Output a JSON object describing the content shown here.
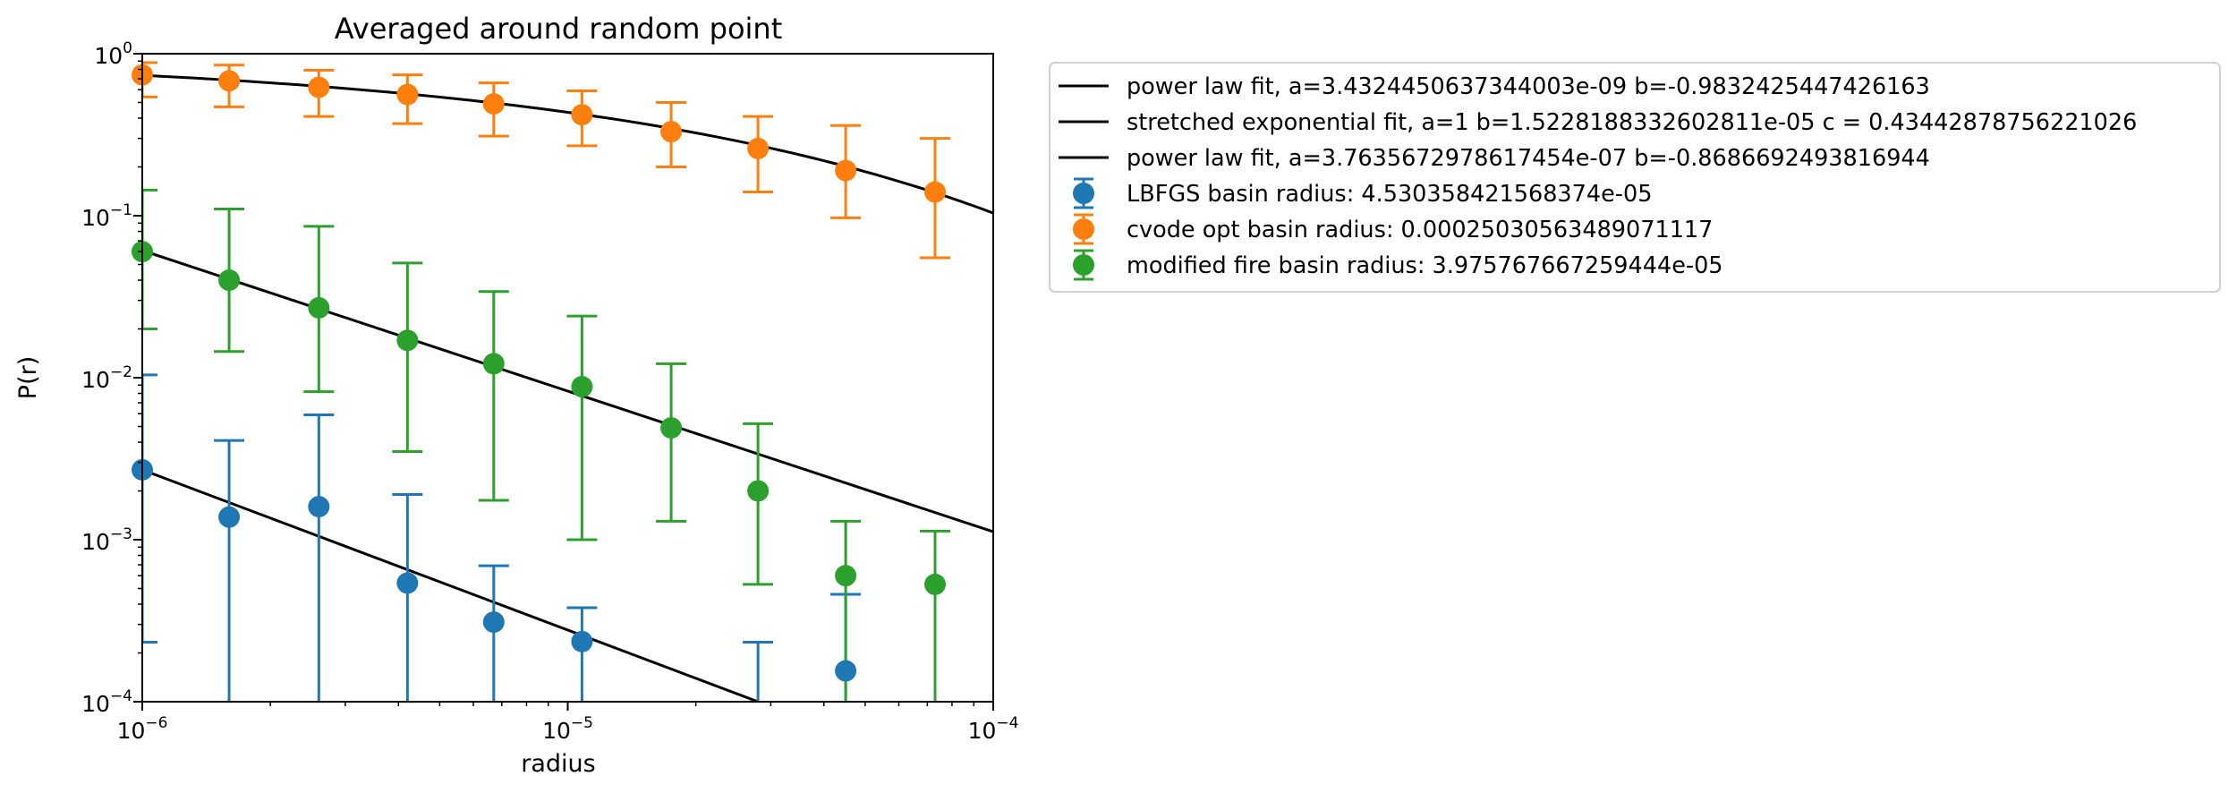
{
  "chart_data": {
    "type": "scatter",
    "title": "Averaged around random point",
    "xlabel": "radius",
    "ylabel": "P(r)",
    "xscale": "log",
    "yscale": "log",
    "xlim": [
      1e-06,
      0.0001
    ],
    "ylim": [
      0.0001,
      1
    ],
    "grid": false,
    "legend_position": "outside-right-top",
    "x_ticks": [
      {
        "base": "10",
        "exp": "−6",
        "value": 1e-06
      },
      {
        "base": "10",
        "exp": "−5",
        "value": 1e-05
      },
      {
        "base": "10",
        "exp": "−4",
        "value": 0.0001
      }
    ],
    "y_ticks": [
      {
        "base": "10",
        "exp": "−4",
        "value": 0.0001
      },
      {
        "base": "10",
        "exp": "−3",
        "value": 0.001
      },
      {
        "base": "10",
        "exp": "−2",
        "value": 0.01
      },
      {
        "base": "10",
        "exp": "−1",
        "value": 0.1
      },
      {
        "base": "10",
        "exp": "0",
        "value": 1
      }
    ],
    "fit_lines": [
      {
        "name": "power law fit, a=3.4324450637344003e-09 b=-0.9832425447426163",
        "color": "#000000",
        "x": [
          1e-06,
          2.8e-05
        ],
        "y": [
          0.0027,
          0.0001
        ]
      },
      {
        "name": "stretched exponential fit, a=1 b=1.5228188332602811e-05 c = 0.43442878756221026",
        "color": "#000000",
        "kind": "stretched-exp",
        "a": 1,
        "b": 1.5228188332602811e-05,
        "c": 0.43442878756221026,
        "x_range": [
          1e-06,
          0.0001
        ]
      },
      {
        "name": "power law fit, a=3.7635672978617454e-07 b=-0.8686692493816944",
        "color": "#000000",
        "x": [
          1e-06,
          0.0001
        ],
        "y": [
          0.061,
          0.00112
        ]
      }
    ],
    "series": [
      {
        "name": "LBFGS basin radius: 4.530358421568374e-05",
        "color": "#1f77b4",
        "x": [
          1e-06,
          1.6e-06,
          2.6e-06,
          4.2e-06,
          6.7e-06,
          1.08e-05,
          1.75e-05,
          2.8e-05,
          4.5e-05,
          7.3e-05
        ],
        "y": [
          0.0027,
          0.00138,
          0.0016,
          0.00054,
          0.00031,
          0.000235,
          null,
          null,
          0.000155,
          null
        ],
        "y_upper": [
          0.0104,
          0.0041,
          0.0059,
          0.0019,
          0.00069,
          0.00038,
          null,
          0.000233,
          0.00046,
          null
        ],
        "y_lower": [
          0.000233,
          0.0001,
          0.0001,
          0.0001,
          0.0001,
          0.0001,
          null,
          0.0001,
          0.0001,
          null
        ]
      },
      {
        "name": "cvode opt basin radius: 0.00025030563489071117",
        "color": "#ff7f0e",
        "x": [
          1e-06,
          1.6e-06,
          2.6e-06,
          4.2e-06,
          6.7e-06,
          1.08e-05,
          1.75e-05,
          2.8e-05,
          4.5e-05,
          7.3e-05
        ],
        "y": [
          0.74,
          0.68,
          0.62,
          0.56,
          0.49,
          0.42,
          0.33,
          0.26,
          0.19,
          0.14
        ],
        "y_upper": [
          0.88,
          0.85,
          0.79,
          0.74,
          0.66,
          0.59,
          0.5,
          0.41,
          0.36,
          0.3
        ],
        "y_lower": [
          0.54,
          0.47,
          0.41,
          0.37,
          0.31,
          0.27,
          0.2,
          0.14,
          0.097,
          0.055
        ]
      },
      {
        "name": "modified fire basin radius: 3.975767667259444e-05",
        "color": "#2ca02c",
        "x": [
          1e-06,
          1.6e-06,
          2.6e-06,
          4.2e-06,
          6.7e-06,
          1.08e-05,
          1.75e-05,
          2.8e-05,
          4.5e-05,
          7.3e-05
        ],
        "y": [
          0.06,
          0.04,
          0.027,
          0.017,
          0.0122,
          0.0088,
          0.0049,
          0.002,
          0.0006,
          0.00053
        ],
        "y_upper": [
          0.144,
          0.11,
          0.086,
          0.051,
          0.034,
          0.024,
          0.0122,
          0.0052,
          0.0013,
          0.00113
        ],
        "y_lower": [
          0.02,
          0.0145,
          0.0082,
          0.0035,
          0.00175,
          0.001,
          0.0013,
          0.00053,
          0.0001,
          0.0001
        ]
      }
    ]
  }
}
